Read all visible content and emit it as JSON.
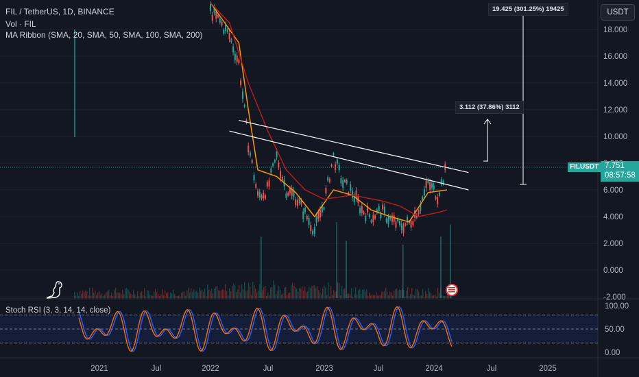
{
  "header": {
    "title": "FIL / TetherUS, 1D, BINANCE",
    "volume_label": "Vol · FIL",
    "ma_ribbon_label": "MA Ribbon (SMA, 20, SMA, 50, SMA, 100, SMA, 200)",
    "currency": "USDT"
  },
  "price_tag": {
    "symbol": "FILUSDT",
    "price": "7.751",
    "countdown": "08:57:58"
  },
  "measurements": {
    "small": "3.112 (37.86%) 3112",
    "large": "19.425 (301.25%) 19425"
  },
  "rsi_label": "Stoch RSI (3, 3, 14, 14, close)",
  "colors": {
    "background": "#131722",
    "up": "#26a69a",
    "down": "#ef5350",
    "ma_fast": "#ff9800",
    "ma_slow": "#b71c1c",
    "rsi_k": "#2962ff",
    "rsi_d": "#ff6d00"
  },
  "icons": [
    "dinosaur-icon",
    "us-flag-icon"
  ],
  "chart_data": {
    "type": "candlestick",
    "title": "FIL / TetherUS, 1D, BINANCE",
    "x_ticks": [
      "2021",
      "Jul",
      "2022",
      "Jul",
      "2023",
      "Jul",
      "2024",
      "Jul",
      "2025"
    ],
    "y_ticks": [
      "18.000",
      "16.000",
      "14.000",
      "12.000",
      "10.000",
      "8.000",
      "6.000",
      "4.000",
      "2.000",
      "0.000",
      "-2.000"
    ],
    "rsi_ticks": [
      "100.00",
      "50.00",
      "0.00"
    ],
    "ylim": [
      -2,
      20
    ],
    "price_series": [
      {
        "date": "2022-01",
        "close": 19.4
      },
      {
        "date": "2022-02",
        "close": 18.6
      },
      {
        "date": "2022-03",
        "close": 17.5
      },
      {
        "date": "2022-04",
        "close": 15.5
      },
      {
        "date": "2022-05",
        "close": 9.5
      },
      {
        "date": "2022-06",
        "close": 5.5
      },
      {
        "date": "2022-07",
        "close": 6.0
      },
      {
        "date": "2022-08",
        "close": 8.5
      },
      {
        "date": "2022-09",
        "close": 6.0
      },
      {
        "date": "2022-10",
        "close": 5.5
      },
      {
        "date": "2022-11",
        "close": 4.2
      },
      {
        "date": "2022-12",
        "close": 3.0
      },
      {
        "date": "2023-01",
        "close": 5.0
      },
      {
        "date": "2023-02",
        "close": 8.5
      },
      {
        "date": "2023-03",
        "close": 6.5
      },
      {
        "date": "2023-04",
        "close": 5.8
      },
      {
        "date": "2023-05",
        "close": 4.5
      },
      {
        "date": "2023-06",
        "close": 4.0
      },
      {
        "date": "2023-07",
        "close": 4.4
      },
      {
        "date": "2023-08",
        "close": 3.8
      },
      {
        "date": "2023-09",
        "close": 3.3
      },
      {
        "date": "2023-10",
        "close": 3.5
      },
      {
        "date": "2023-11",
        "close": 4.6
      },
      {
        "date": "2023-12",
        "close": 6.5
      },
      {
        "date": "2024-01",
        "close": 5.6
      },
      {
        "date": "2024-02",
        "close": 7.75
      }
    ],
    "ma_fast": [
      {
        "date": "2022-01",
        "value": 20.0
      },
      {
        "date": "2022-04",
        "value": 17.0
      },
      {
        "date": "2022-05",
        "value": 12.0
      },
      {
        "date": "2022-06",
        "value": 7.5
      },
      {
        "date": "2022-08",
        "value": 7.0
      },
      {
        "date": "2022-10",
        "value": 5.8
      },
      {
        "date": "2022-12",
        "value": 4.0
      },
      {
        "date": "2023-02",
        "value": 6.0
      },
      {
        "date": "2023-04",
        "value": 5.6
      },
      {
        "date": "2023-06",
        "value": 4.5
      },
      {
        "date": "2023-08",
        "value": 4.0
      },
      {
        "date": "2023-10",
        "value": 3.6
      },
      {
        "date": "2023-12",
        "value": 5.8
      },
      {
        "date": "2024-02",
        "value": 6.0
      }
    ],
    "ma_slow": [
      {
        "date": "2022-01",
        "value": 20.0
      },
      {
        "date": "2022-03",
        "value": 18.5
      },
      {
        "date": "2022-05",
        "value": 14.0
      },
      {
        "date": "2022-07",
        "value": 10.5
      },
      {
        "date": "2022-09",
        "value": 7.5
      },
      {
        "date": "2022-11",
        "value": 6.0
      },
      {
        "date": "2023-01",
        "value": 5.3
      },
      {
        "date": "2023-04",
        "value": 5.6
      },
      {
        "date": "2023-07",
        "value": 5.2
      },
      {
        "date": "2023-09",
        "value": 4.8
      },
      {
        "date": "2023-11",
        "value": 4.0
      },
      {
        "date": "2024-01",
        "value": 4.3
      },
      {
        "date": "2024-02",
        "value": 4.5
      }
    ],
    "trendlines": [
      {
        "from": {
          "date": "2022-04",
          "value": 11.2
        },
        "to": {
          "date": "2024-05",
          "value": 7.3
        }
      },
      {
        "from": {
          "date": "2022-03",
          "value": 10.4
        },
        "to": {
          "date": "2024-05",
          "value": 6.0
        }
      }
    ],
    "volume_spikes": [
      {
        "date": "2022-06",
        "value": 2.5
      },
      {
        "date": "2023-02",
        "value": 3.6
      },
      {
        "date": "2023-03",
        "value": 2.2
      },
      {
        "date": "2023-09",
        "value": 1.9
      },
      {
        "date": "2024-01",
        "value": 2.5
      },
      {
        "date": "2024-02",
        "value": 3.4
      }
    ],
    "volume_bar_early": {
      "date": "2020-11",
      "value": 18
    }
  }
}
